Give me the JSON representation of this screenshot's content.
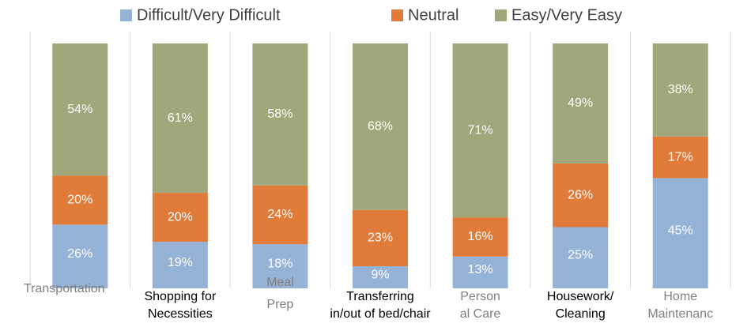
{
  "chart_data": {
    "type": "stacked_bar",
    "categories": [
      [
        "Transportation"
      ],
      [
        "Shopping for",
        "Necessities"
      ],
      [
        "Meal",
        "Prep"
      ],
      [
        "Transferring",
        "in/out of bed/chair"
      ],
      [
        "Person",
        "al Care"
      ],
      [
        "Housework/",
        "Cleaning"
      ],
      [
        "Home",
        "Maintenanc"
      ]
    ],
    "category_colors": [
      "#7f7f7f",
      "#000000",
      "#7f7f7f",
      "#000000",
      "#7f7f7f",
      "#000000",
      "#7f7f7f"
    ],
    "series": [
      {
        "name": "Difficult/Very Difficult",
        "color": "#95b3d7",
        "values": [
          26,
          19,
          18,
          9,
          13,
          25,
          45
        ],
        "value_labels": [
          "26%",
          "19%",
          "18%",
          "9%",
          "13%",
          "25%",
          "45%"
        ]
      },
      {
        "name": "Neutral",
        "color": "#e07b39",
        "values": [
          20,
          20,
          24,
          23,
          16,
          26,
          17
        ],
        "value_labels": [
          "20%",
          "20%",
          "24%",
          "23%",
          "16%",
          "26%",
          "17%"
        ]
      },
      {
        "name": "Easy/Very Easy",
        "color": "#9fa77b",
        "values": [
          54,
          61,
          58,
          68,
          71,
          49,
          38
        ],
        "value_labels": [
          "54%",
          "61%",
          "58%",
          "68%",
          "71%",
          "49%",
          "38%"
        ]
      }
    ],
    "ylim": [
      0,
      100
    ],
    "legend": "top"
  }
}
